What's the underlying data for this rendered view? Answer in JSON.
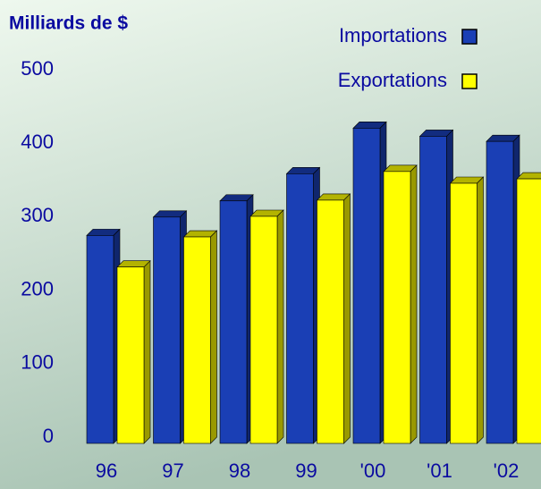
{
  "chart_data": {
    "type": "bar",
    "title": "Milliards de $",
    "categories": [
      "96",
      "97",
      "98",
      "99",
      "'00",
      "'01",
      "'02"
    ],
    "series": [
      {
        "name": "Importations",
        "color": "#1a3fb5",
        "values": [
          283,
          308,
          330,
          367,
          429,
          418,
          411
        ]
      },
      {
        "name": "Exportations",
        "color": "#ffff00",
        "values": [
          240,
          281,
          309,
          331,
          370,
          354,
          360
        ]
      }
    ],
    "ylim": [
      0,
      500
    ],
    "yticks": [
      0,
      100,
      200,
      300,
      400,
      500
    ],
    "grid": false
  }
}
